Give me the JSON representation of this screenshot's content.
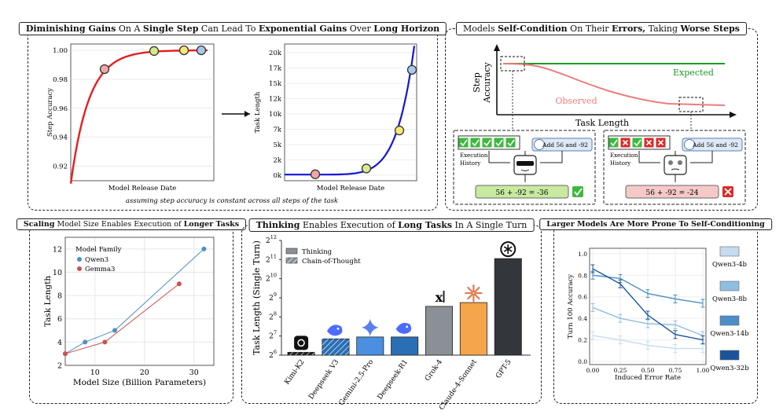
{
  "colors": {
    "red": "#e51f1f",
    "blue": "#1515d8",
    "green": "#1a9a26",
    "observed": "#f07b7b",
    "qwen": "#4f8fc0",
    "gemma": "#d0504f",
    "thinkBar": "#4a8fe0"
  },
  "panel1": {
    "title_parts": [
      [
        "Diminishing Gains",
        1
      ],
      [
        " On A ",
        0
      ],
      [
        "Single Step",
        1
      ],
      [
        " Can Lead To ",
        0
      ],
      [
        "Exponential Gains",
        1
      ],
      [
        " Over ",
        0
      ],
      [
        "Long Horizon",
        1
      ]
    ],
    "left_ylabel": "Step Accuracy",
    "left_xlabel": "Model Release Date",
    "left_yticks": [
      "1.00",
      "0.98",
      "0.96",
      "0.94",
      "0.92"
    ],
    "right_ylabel": "Task Length",
    "right_xlabel": "Model Release Date",
    "right_yticks": [
      "20k",
      "17k",
      "15k",
      "12k",
      "10k",
      "7k",
      "5k",
      "2k",
      "0k"
    ],
    "caption": "assuming step accuracy is constant across all steps of the task"
  },
  "panel2": {
    "title_parts": [
      [
        "Models ",
        0
      ],
      [
        "Self-Condition",
        1
      ],
      [
        " On Their ",
        0
      ],
      [
        "Errors,",
        1
      ],
      [
        " Taking ",
        0
      ],
      [
        "Worse Steps",
        1
      ]
    ],
    "ylabel1": "Step",
    "ylabel2": "Accuracy",
    "xlabel": "Task Length",
    "expected": "Expected",
    "observed": "Observed",
    "left_box": {
      "exec1": "Execution",
      "exec2": "History",
      "prompt": "Add 56 and -92",
      "answer": "56 + -92 = -36",
      "marks": [
        "check",
        "check",
        "check",
        "check",
        "check"
      ]
    },
    "right_box": {
      "exec1": "Execution",
      "exec2": "History",
      "prompt": "Add 56 and -92",
      "answer": "56 + -92 = -24",
      "marks": [
        "check",
        "cross",
        "check",
        "cross",
        "cross"
      ]
    }
  },
  "panel3": {
    "title_parts": [
      [
        "Scaling",
        1
      ],
      [
        " Model Size Enables Execution of ",
        0
      ],
      [
        "Longer Tasks",
        1
      ]
    ],
    "legend_title": "Model Family",
    "xlabel": "Model Size (Billion Parameters)",
    "ylabel": "Task Length",
    "chart_data": {
      "type": "line",
      "xlim": [
        4,
        34
      ],
      "ylim": [
        2,
        13
      ],
      "xticks": [
        "10",
        "20",
        "30"
      ],
      "yticks": [
        "2",
        "4",
        "6",
        "8",
        "10",
        "12"
      ],
      "series": [
        {
          "name": "Qwen3",
          "x": [
            4,
            8,
            14,
            32
          ],
          "y": [
            3,
            4,
            5,
            12
          ]
        },
        {
          "name": "Gemma3",
          "x": [
            4,
            12,
            27
          ],
          "y": [
            3,
            4,
            9
          ]
        }
      ]
    }
  },
  "panel4": {
    "title_parts": [
      [
        "Thinking",
        1
      ],
      [
        " Enables Execution of ",
        0
      ],
      [
        "Long Tasks",
        1
      ],
      [
        " In A Single Turn",
        0
      ]
    ],
    "ylabel": "Task Length (Single Turn)",
    "legend": [
      "Thinking",
      "Chain-of-Thought"
    ],
    "chart_data": {
      "type": "bar",
      "yscale": "log2",
      "ylim_exp": [
        6,
        12
      ],
      "yticks": [
        "6",
        "7",
        "8",
        "9",
        "10",
        "11",
        "12"
      ],
      "categories": [
        "Kimi-K2",
        "Deepseek V3",
        "Gemini-2.5-Pro",
        "Deepseek-R1",
        "Grok-4",
        "Claude-4-Sonnet",
        "GPT-5"
      ],
      "values_exp": [
        6.15,
        6.85,
        6.95,
        6.95,
        8.55,
        8.75,
        11.05
      ],
      "mode": [
        "cot",
        "cot",
        "thinking",
        "thinking",
        "thinking",
        "thinking",
        "thinking"
      ],
      "colors": [
        "#222222",
        "#2a6fb5",
        "#4a8fe0",
        "#2a6fb5",
        "#8b9096",
        "#f5a54a",
        "#33363b"
      ]
    }
  },
  "panel5": {
    "title_parts": [
      [
        "Larger Models Are More Prone To ",
        1
      ],
      [
        "Self-Conditioning",
        1
      ]
    ],
    "ylabel": "Turn 100 Accuracy",
    "xlabel": "Induced Error Rate",
    "chart_data": {
      "type": "line",
      "x": [
        0,
        0.25,
        0.5,
        0.75,
        1.0
      ],
      "xticks": [
        "0.00",
        "0.25",
        "0.50",
        "0.75",
        "1.00"
      ],
      "yticks": [
        "0.0",
        "0.2",
        "0.4",
        "0.6",
        "0.8",
        "1.0"
      ],
      "series": [
        {
          "name": "Qwen3-4b",
          "values": [
            0.24,
            0.2,
            0.15,
            0.12,
            0.12
          ],
          "color": "#c6dbef"
        },
        {
          "name": "Qwen3-8b",
          "values": [
            0.5,
            0.4,
            0.35,
            0.34,
            0.24
          ],
          "color": "#8fbfe0"
        },
        {
          "name": "Qwen3-14b",
          "values": [
            0.8,
            0.77,
            0.63,
            0.58,
            0.54
          ],
          "color": "#4a8ec8"
        },
        {
          "name": "Qwen3-32b",
          "values": [
            0.86,
            0.72,
            0.43,
            0.25,
            0.2
          ],
          "color": "#1a5599"
        }
      ]
    }
  }
}
